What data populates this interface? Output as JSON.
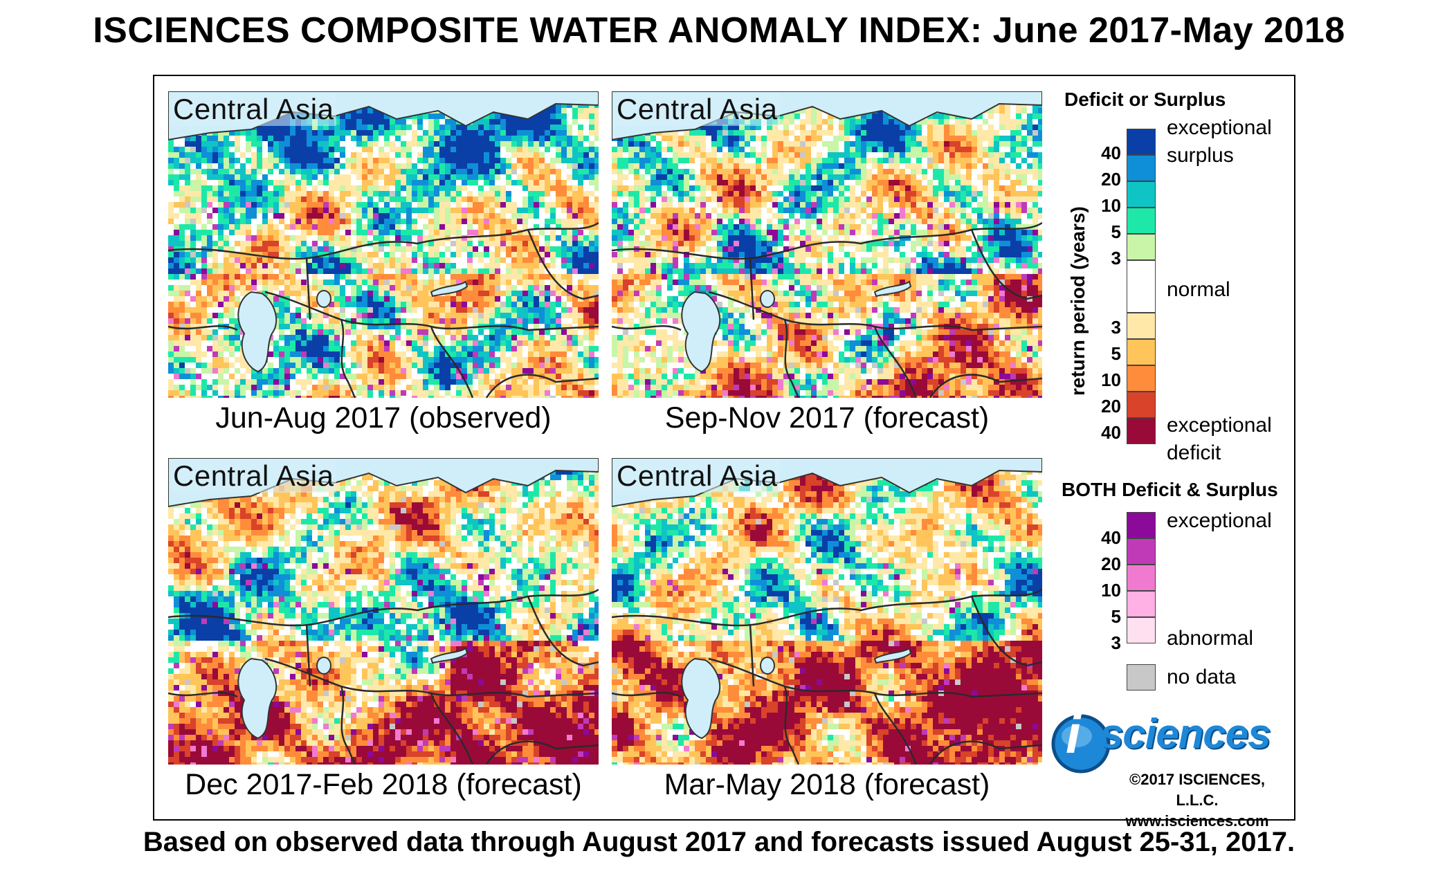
{
  "title": "ISCIENCES COMPOSITE WATER ANOMALY INDEX: June 2017-May 2018",
  "footer": "Based on observed data through August 2017 and forecasts issued August 25-31, 2017.",
  "panels": [
    {
      "region": "Central Asia",
      "caption": "Jun-Aug 2017 (observed)",
      "pattern": "observed-wet"
    },
    {
      "region": "Central Asia",
      "caption": "Sep-Nov 2017 (forecast)",
      "pattern": "mixed"
    },
    {
      "region": "Central Asia",
      "caption": "Dec 2017-Feb 2018 (forecast)",
      "pattern": "mixed-dry"
    },
    {
      "region": "Central Asia",
      "caption": "Mar-May 2018 (forecast)",
      "pattern": "dry"
    }
  ],
  "legend": {
    "deficit_surplus_title": "Deficit or Surplus",
    "axis_title": "return period (years)",
    "surplus_ticks": [
      "40",
      "20",
      "10",
      "5",
      "3"
    ],
    "deficit_ticks": [
      "3",
      "5",
      "10",
      "20",
      "40"
    ],
    "labels": {
      "exceptional": "exceptional",
      "surplus": "surplus",
      "normal": "normal",
      "exceptional_deficit": "exceptional",
      "deficit": "deficit"
    },
    "colors": {
      "surplus": [
        "#0a3fa8",
        "#0f8fd8",
        "#0fc4c4",
        "#1ee8a8",
        "#c8f5a8"
      ],
      "normal": "#ffffff",
      "deficit": [
        "#ffe8a8",
        "#ffc45a",
        "#ff8c3a",
        "#d8432a",
        "#9a0a38"
      ]
    },
    "both_title": "BOTH Deficit & Surplus",
    "both_ticks": [
      "40",
      "20",
      "10",
      "5",
      "3"
    ],
    "both_labels": {
      "top": "exceptional",
      "bottom": "abnormal"
    },
    "both_colors": [
      "#8b0a9a",
      "#c03ab8",
      "#f07ad0",
      "#ffb0e4",
      "#ffe0f0"
    ],
    "no_data_label": "no data",
    "no_data_color": "#c8c8c8"
  },
  "logo": {
    "text": "sciences",
    "letter": "i"
  },
  "copyright": "©2017 ISCIENCES, L.L.C.",
  "website": "www.isciences.com"
}
